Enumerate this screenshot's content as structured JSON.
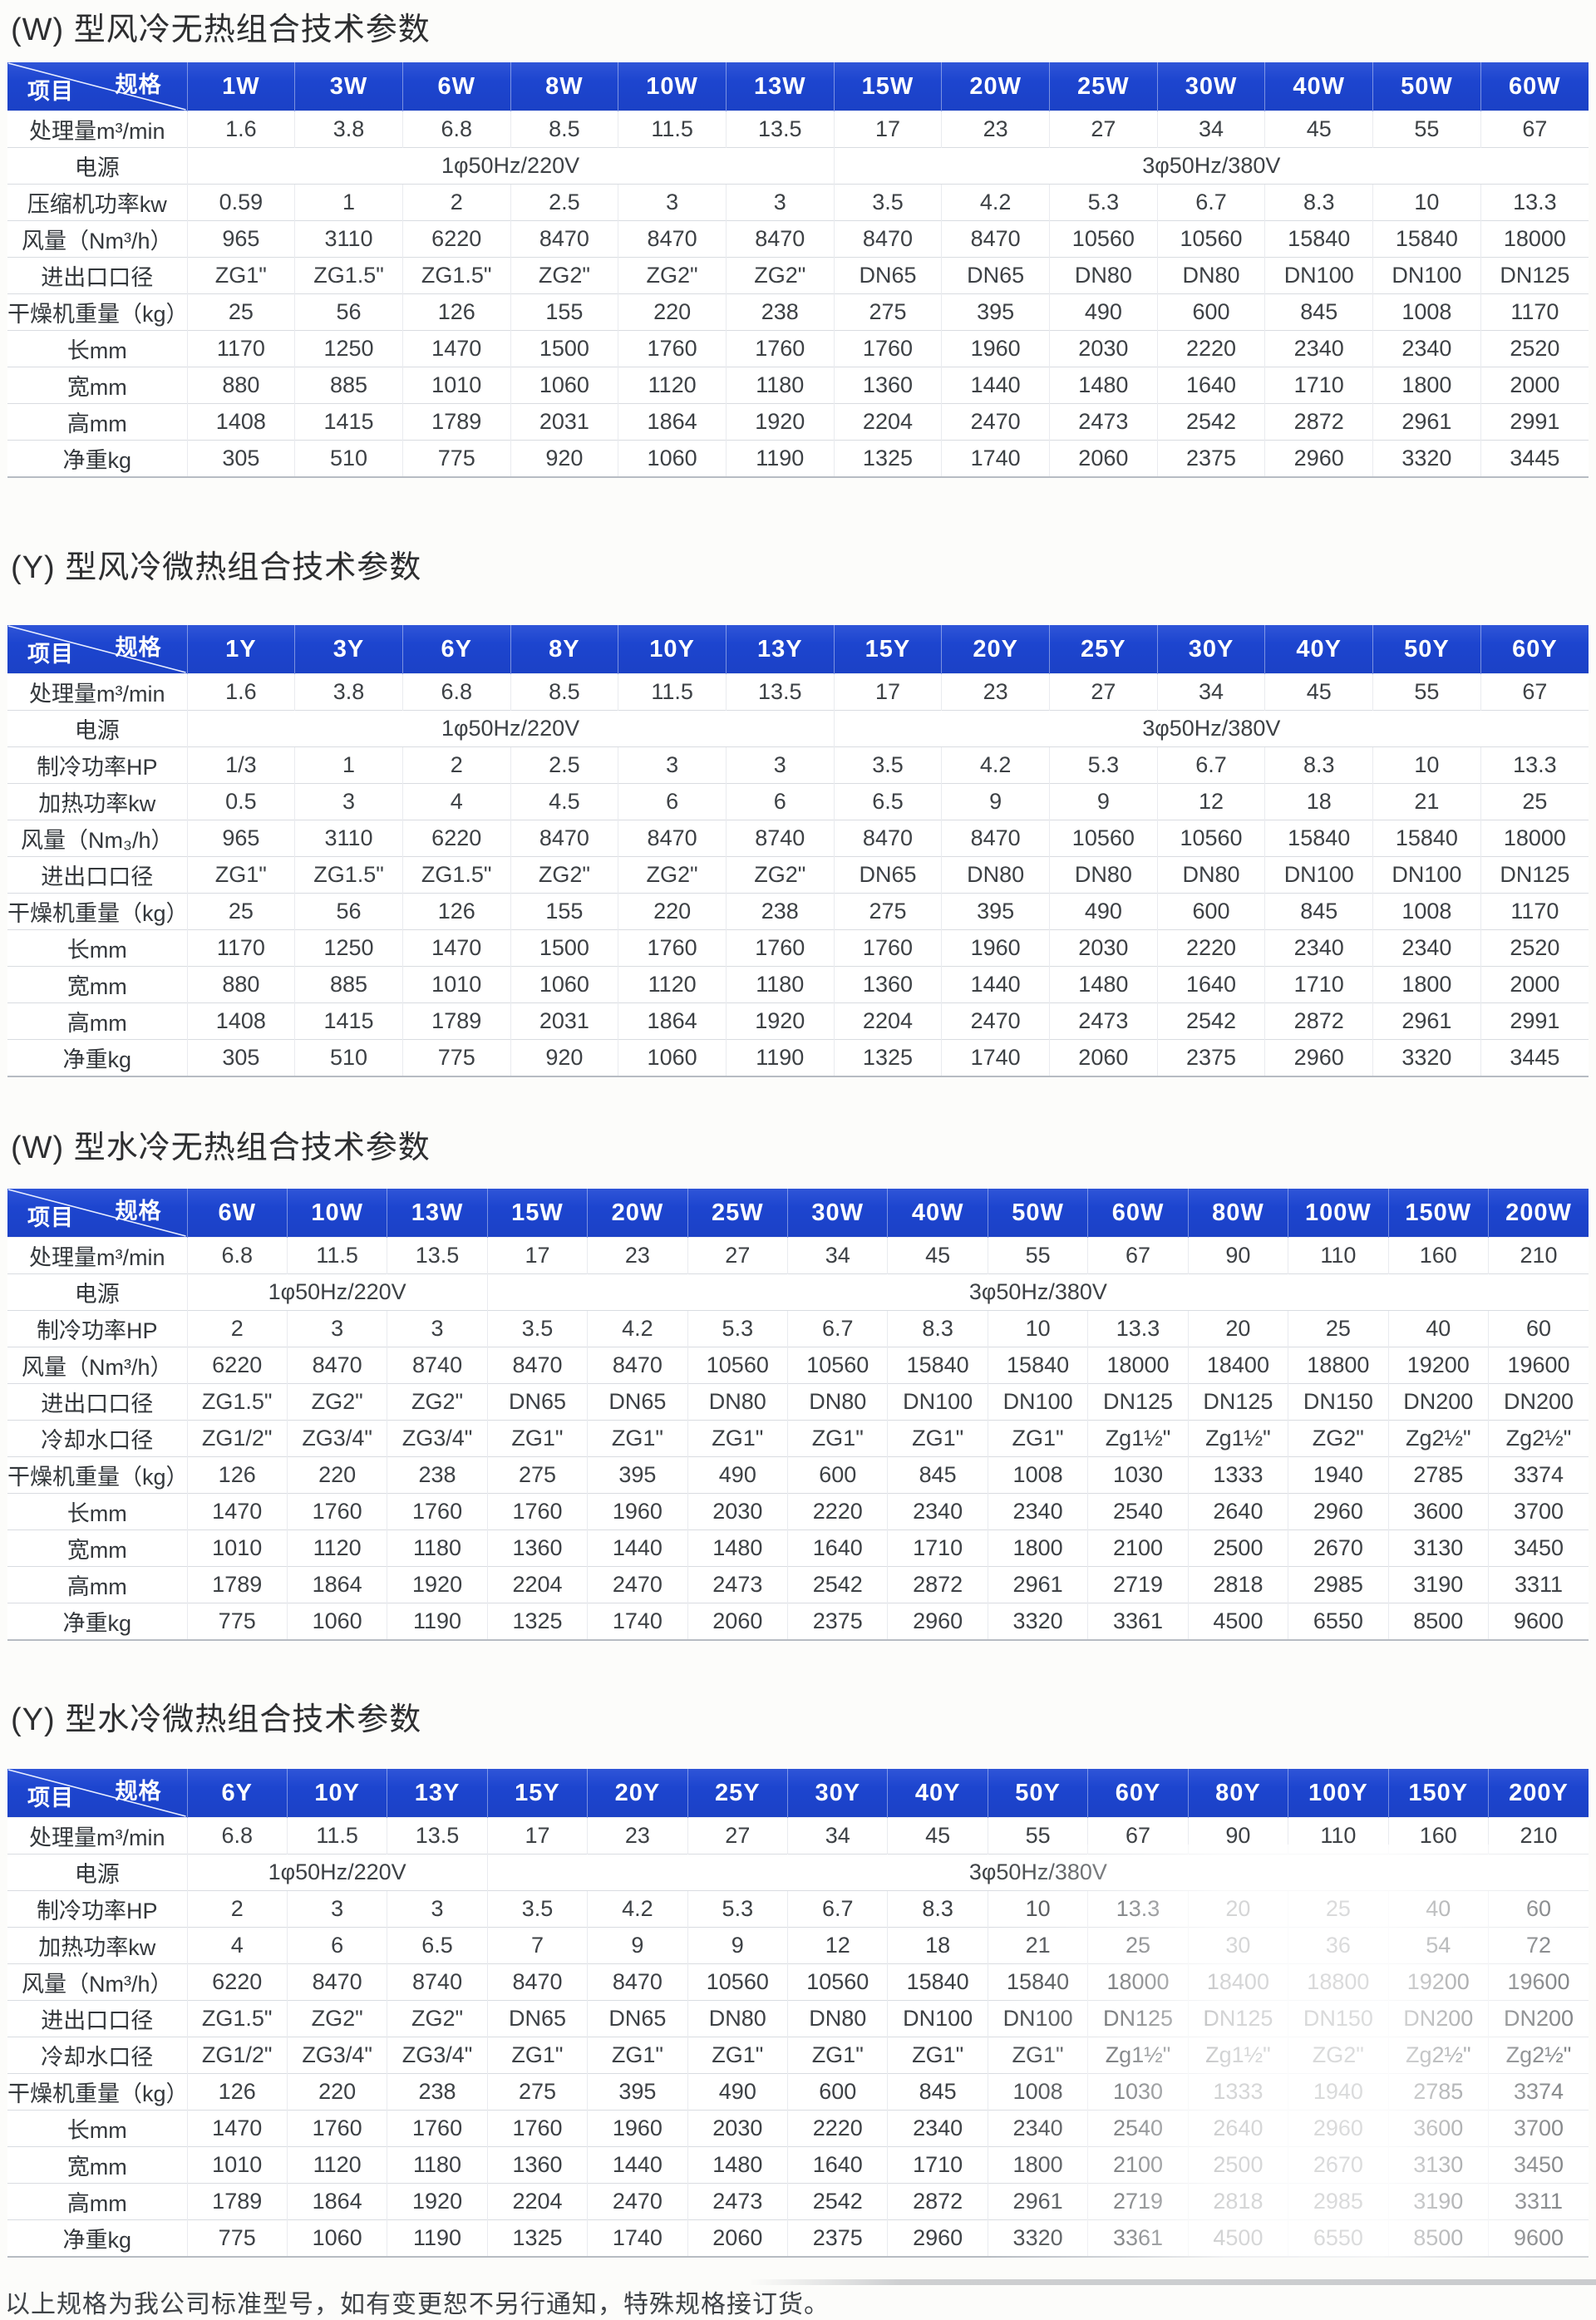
{
  "page": {
    "footer_note": "以上规格为我公司标准型号，如有变更恕不另行通知，特殊规格接订货。"
  },
  "colors": {
    "header_blue": "#1d45cf",
    "header_text": "#ffffff",
    "body_text": "#3d4145",
    "grid_line": "#d9dce1"
  },
  "corner": {
    "top_label": "规格",
    "bottom_label": "项目"
  },
  "tables": [
    {
      "title": "(W) 型风冷无热组合技术参数",
      "columns": [
        "1W",
        "3W",
        "6W",
        "8W",
        "10W",
        "13W",
        "15W",
        "20W",
        "25W",
        "30W",
        "40W",
        "50W",
        "60W"
      ],
      "rows": [
        {
          "label": "处理量m³/min",
          "values": [
            "1.6",
            "3.8",
            "6.8",
            "8.5",
            "11.5",
            "13.5",
            "17",
            "23",
            "27",
            "34",
            "45",
            "55",
            "67"
          ]
        },
        {
          "label": "电源",
          "merged": [
            {
              "text": "1φ50Hz/220V",
              "span": 6
            },
            {
              "text": "3φ50Hz/380V",
              "span": 7
            }
          ]
        },
        {
          "label": "压缩机功率kw",
          "values": [
            "0.59",
            "1",
            "2",
            "2.5",
            "3",
            "3",
            "3.5",
            "4.2",
            "5.3",
            "6.7",
            "8.3",
            "10",
            "13.3"
          ]
        },
        {
          "label": "风量（Nm³/h）",
          "values": [
            "965",
            "3110",
            "6220",
            "8470",
            "8470",
            "8470",
            "8470",
            "8470",
            "10560",
            "10560",
            "15840",
            "15840",
            "18000"
          ]
        },
        {
          "label": "进出口口径",
          "values": [
            "ZG1\"",
            "ZG1.5\"",
            "ZG1.5\"",
            "ZG2\"",
            "ZG2\"",
            "ZG2\"",
            "DN65",
            "DN65",
            "DN80",
            "DN80",
            "DN100",
            "DN100",
            "DN125"
          ]
        },
        {
          "label": "干燥机重量（kg）",
          "values": [
            "25",
            "56",
            "126",
            "155",
            "220",
            "238",
            "275",
            "395",
            "490",
            "600",
            "845",
            "1008",
            "1170"
          ]
        },
        {
          "label": "长mm",
          "values": [
            "1170",
            "1250",
            "1470",
            "1500",
            "1760",
            "1760",
            "1760",
            "1960",
            "2030",
            "2220",
            "2340",
            "2340",
            "2520"
          ]
        },
        {
          "label": "宽mm",
          "values": [
            "880",
            "885",
            "1010",
            "1060",
            "1120",
            "1180",
            "1360",
            "1440",
            "1480",
            "1640",
            "1710",
            "1800",
            "2000"
          ]
        },
        {
          "label": "高mm",
          "values": [
            "1408",
            "1415",
            "1789",
            "2031",
            "1864",
            "1920",
            "2204",
            "2470",
            "2473",
            "2542",
            "2872",
            "2961",
            "2991"
          ]
        },
        {
          "label": "净重kg",
          "values": [
            "305",
            "510",
            "775",
            "920",
            "1060",
            "1190",
            "1325",
            "1740",
            "2060",
            "2375",
            "2960",
            "3320",
            "3445"
          ]
        }
      ]
    },
    {
      "title": "(Y) 型风冷微热组合技术参数",
      "columns": [
        "1Y",
        "3Y",
        "6Y",
        "8Y",
        "10Y",
        "13Y",
        "15Y",
        "20Y",
        "25Y",
        "30Y",
        "40Y",
        "50Y",
        "60Y"
      ],
      "rows": [
        {
          "label": "处理量m³/min",
          "values": [
            "1.6",
            "3.8",
            "6.8",
            "8.5",
            "11.5",
            "13.5",
            "17",
            "23",
            "27",
            "34",
            "45",
            "55",
            "67"
          ]
        },
        {
          "label": "电源",
          "merged": [
            {
              "text": "1φ50Hz/220V",
              "span": 6
            },
            {
              "text": "3φ50Hz/380V",
              "span": 7
            }
          ]
        },
        {
          "label": "制冷功率HP",
          "values": [
            "1/3",
            "1",
            "2",
            "2.5",
            "3",
            "3",
            "3.5",
            "4.2",
            "5.3",
            "6.7",
            "8.3",
            "10",
            "13.3"
          ]
        },
        {
          "label": "加热功率kw",
          "values": [
            "0.5",
            "3",
            "4",
            "4.5",
            "6",
            "6",
            "6.5",
            "9",
            "9",
            "12",
            "18",
            "21",
            "25"
          ]
        },
        {
          "label": "风量（Nm₃/h）",
          "values": [
            "965",
            "3110",
            "6220",
            "8470",
            "8470",
            "8740",
            "8470",
            "8470",
            "10560",
            "10560",
            "15840",
            "15840",
            "18000"
          ]
        },
        {
          "label": "进出口口径",
          "values": [
            "ZG1\"",
            "ZG1.5\"",
            "ZG1.5\"",
            "ZG2\"",
            "ZG2\"",
            "ZG2\"",
            "DN65",
            "DN80",
            "DN80",
            "DN80",
            "DN100",
            "DN100",
            "DN125"
          ]
        },
        {
          "label": "干燥机重量（kg）",
          "values": [
            "25",
            "56",
            "126",
            "155",
            "220",
            "238",
            "275",
            "395",
            "490",
            "600",
            "845",
            "1008",
            "1170"
          ]
        },
        {
          "label": "长mm",
          "values": [
            "1170",
            "1250",
            "1470",
            "1500",
            "1760",
            "1760",
            "1760",
            "1960",
            "2030",
            "2220",
            "2340",
            "2340",
            "2520"
          ]
        },
        {
          "label": "宽mm",
          "values": [
            "880",
            "885",
            "1010",
            "1060",
            "1120",
            "1180",
            "1360",
            "1440",
            "1480",
            "1640",
            "1710",
            "1800",
            "2000"
          ]
        },
        {
          "label": "高mm",
          "values": [
            "1408",
            "1415",
            "1789",
            "2031",
            "1864",
            "1920",
            "2204",
            "2470",
            "2473",
            "2542",
            "2872",
            "2961",
            "2991"
          ]
        },
        {
          "label": "净重kg",
          "values": [
            "305",
            "510",
            "775",
            "920",
            "1060",
            "1190",
            "1325",
            "1740",
            "2060",
            "2375",
            "2960",
            "3320",
            "3445"
          ]
        }
      ]
    },
    {
      "title": "(W) 型水冷无热组合技术参数",
      "columns": [
        "6W",
        "10W",
        "13W",
        "15W",
        "20W",
        "25W",
        "30W",
        "40W",
        "50W",
        "60W",
        "80W",
        "100W",
        "150W",
        "200W"
      ],
      "rows": [
        {
          "label": "处理量m³/min",
          "values": [
            "6.8",
            "11.5",
            "13.5",
            "17",
            "23",
            "27",
            "34",
            "45",
            "55",
            "67",
            "90",
            "110",
            "160",
            "210"
          ]
        },
        {
          "label": "电源",
          "merged": [
            {
              "text": "1φ50Hz/220V",
              "span": 3
            },
            {
              "text": "3φ50Hz/380V",
              "span": 11
            }
          ]
        },
        {
          "label": "制冷功率HP",
          "values": [
            "2",
            "3",
            "3",
            "3.5",
            "4.2",
            "5.3",
            "6.7",
            "8.3",
            "10",
            "13.3",
            "20",
            "25",
            "40",
            "60"
          ]
        },
        {
          "label": "风量（Nm³/h）",
          "values": [
            "6220",
            "8470",
            "8740",
            "8470",
            "8470",
            "10560",
            "10560",
            "15840",
            "15840",
            "18000",
            "18400",
            "18800",
            "19200",
            "19600"
          ]
        },
        {
          "label": "进出口口径",
          "values": [
            "ZG1.5\"",
            "ZG2\"",
            "ZG2\"",
            "DN65",
            "DN65",
            "DN80",
            "DN80",
            "DN100",
            "DN100",
            "DN125",
            "DN125",
            "DN150",
            "DN200",
            "DN200"
          ]
        },
        {
          "label": "冷却水口径",
          "values": [
            "ZG1/2\"",
            "ZG3/4\"",
            "ZG3/4\"",
            "ZG1\"",
            "ZG1\"",
            "ZG1\"",
            "ZG1\"",
            "ZG1\"",
            "ZG1\"",
            "Zg1½\"",
            "Zg1½\"",
            "ZG2\"",
            "Zg2½\"",
            "Zg2½\""
          ]
        },
        {
          "label": "干燥机重量（kg）",
          "values": [
            "126",
            "220",
            "238",
            "275",
            "395",
            "490",
            "600",
            "845",
            "1008",
            "1030",
            "1333",
            "1940",
            "2785",
            "3374"
          ]
        },
        {
          "label": "长mm",
          "values": [
            "1470",
            "1760",
            "1760",
            "1760",
            "1960",
            "2030",
            "2220",
            "2340",
            "2340",
            "2540",
            "2640",
            "2960",
            "3600",
            "3700"
          ]
        },
        {
          "label": "宽mm",
          "values": [
            "1010",
            "1120",
            "1180",
            "1360",
            "1440",
            "1480",
            "1640",
            "1710",
            "1800",
            "2100",
            "2500",
            "2670",
            "3130",
            "3450"
          ]
        },
        {
          "label": "高mm",
          "values": [
            "1789",
            "1864",
            "1920",
            "2204",
            "2470",
            "2473",
            "2542",
            "2872",
            "2961",
            "2719",
            "2818",
            "2985",
            "3190",
            "3311"
          ]
        },
        {
          "label": "净重kg",
          "values": [
            "775",
            "1060",
            "1190",
            "1325",
            "1740",
            "2060",
            "2375",
            "2960",
            "3320",
            "3361",
            "4500",
            "6550",
            "8500",
            "9600"
          ]
        }
      ]
    },
    {
      "title": "(Y) 型水冷微热组合技术参数",
      "faded": true,
      "columns": [
        "6Y",
        "10Y",
        "13Y",
        "15Y",
        "20Y",
        "25Y",
        "30Y",
        "40Y",
        "50Y",
        "60Y",
        "80Y",
        "100Y",
        "150Y",
        "200Y"
      ],
      "rows": [
        {
          "label": "处理量m³/min",
          "values": [
            "6.8",
            "11.5",
            "13.5",
            "17",
            "23",
            "27",
            "34",
            "45",
            "55",
            "67",
            "90",
            "110",
            "160",
            "210"
          ]
        },
        {
          "label": "电源",
          "merged": [
            {
              "text": "1φ50Hz/220V",
              "span": 3
            },
            {
              "text": "3φ50Hz/380V",
              "span": 11
            }
          ]
        },
        {
          "label": "制冷功率HP",
          "values": [
            "2",
            "3",
            "3",
            "3.5",
            "4.2",
            "5.3",
            "6.7",
            "8.3",
            "10",
            "13.3",
            "20",
            "25",
            "40",
            "60"
          ]
        },
        {
          "label": "加热功率kw",
          "values": [
            "4",
            "6",
            "6.5",
            "7",
            "9",
            "9",
            "12",
            "18",
            "21",
            "25",
            "30",
            "36",
            "54",
            "72"
          ]
        },
        {
          "label": "风量（Nm³/h）",
          "values": [
            "6220",
            "8470",
            "8740",
            "8470",
            "8470",
            "10560",
            "10560",
            "15840",
            "15840",
            "18000",
            "18400",
            "18800",
            "19200",
            "19600"
          ]
        },
        {
          "label": "进出口口径",
          "values": [
            "ZG1.5\"",
            "ZG2\"",
            "ZG2\"",
            "DN65",
            "DN65",
            "DN80",
            "DN80",
            "DN100",
            "DN100",
            "DN125",
            "DN125",
            "DN150",
            "DN200",
            "DN200"
          ]
        },
        {
          "label": "冷却水口径",
          "values": [
            "ZG1/2\"",
            "ZG3/4\"",
            "ZG3/4\"",
            "ZG1\"",
            "ZG1\"",
            "ZG1\"",
            "ZG1\"",
            "ZG1\"",
            "ZG1\"",
            "Zg1½\"",
            "Zg1½\"",
            "ZG2\"",
            "Zg2½\"",
            "Zg2½\""
          ]
        },
        {
          "label": "干燥机重量（kg）",
          "values": [
            "126",
            "220",
            "238",
            "275",
            "395",
            "490",
            "600",
            "845",
            "1008",
            "1030",
            "1333",
            "1940",
            "2785",
            "3374"
          ]
        },
        {
          "label": "长mm",
          "values": [
            "1470",
            "1760",
            "1760",
            "1760",
            "1960",
            "2030",
            "2220",
            "2340",
            "2340",
            "2540",
            "2640",
            "2960",
            "3600",
            "3700"
          ]
        },
        {
          "label": "宽mm",
          "values": [
            "1010",
            "1120",
            "1180",
            "1360",
            "1440",
            "1480",
            "1640",
            "1710",
            "1800",
            "2100",
            "2500",
            "2670",
            "3130",
            "3450"
          ]
        },
        {
          "label": "高mm",
          "values": [
            "1789",
            "1864",
            "1920",
            "2204",
            "2470",
            "2473",
            "2542",
            "2872",
            "2961",
            "2719",
            "2818",
            "2985",
            "3190",
            "3311"
          ]
        },
        {
          "label": "净重kg",
          "values": [
            "775",
            "1060",
            "1190",
            "1325",
            "1740",
            "2060",
            "2375",
            "2960",
            "3320",
            "3361",
            "4500",
            "6550",
            "8500",
            "9600"
          ]
        }
      ]
    }
  ]
}
